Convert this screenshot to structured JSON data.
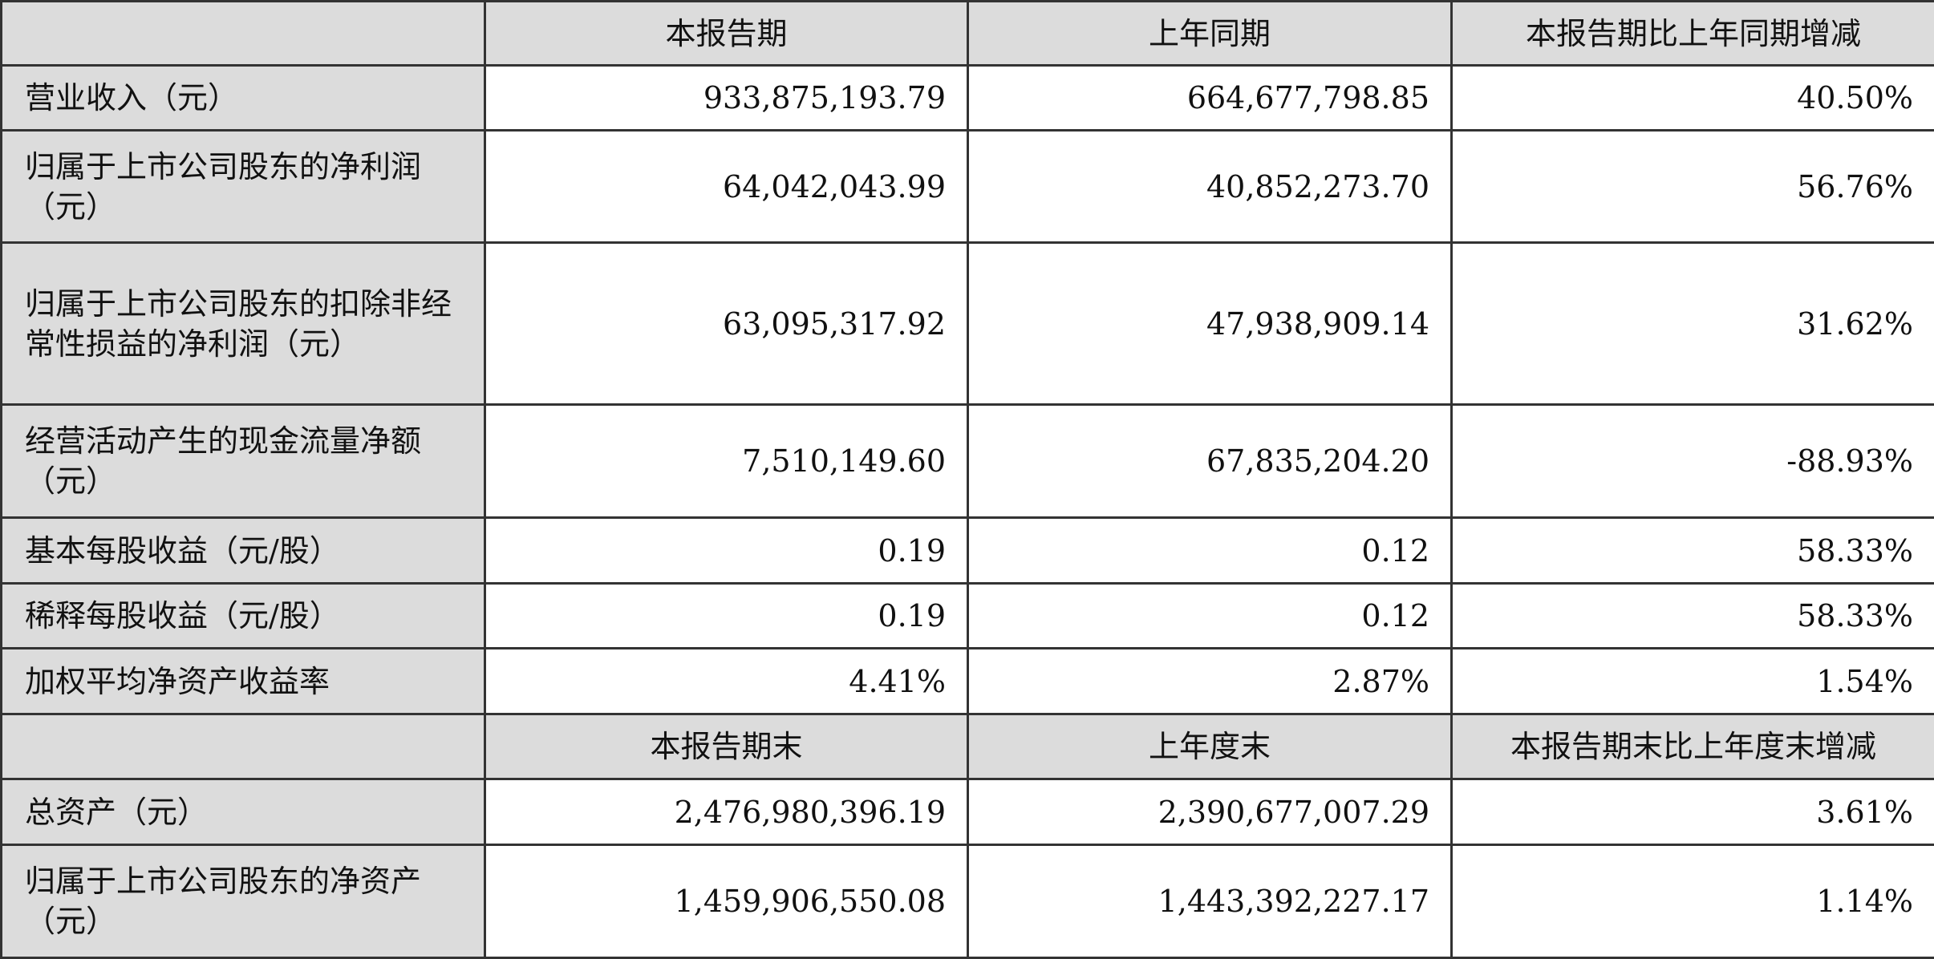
{
  "header1": [
    "",
    "本报告期",
    "上年同期",
    "本报告期比上年同期增减"
  ],
  "rows1": [
    {
      "label": "营业收入（元）",
      "current": "933,875,193.79",
      "prior": "664,677,798.85",
      "change": "40.50%"
    },
    {
      "label": "归属于上市公司股东的净利润（元）",
      "current": "64,042,043.99",
      "prior": "40,852,273.70",
      "change": "56.76%"
    },
    {
      "label": "归属于上市公司股东的扣除非经常性损益的净利润（元）",
      "current": "63,095,317.92",
      "prior": "47,938,909.14",
      "change": "31.62%"
    },
    {
      "label": "经营活动产生的现金流量净额（元）",
      "current": "7,510,149.60",
      "prior": "67,835,204.20",
      "change": "-88.93%"
    },
    {
      "label": "基本每股收益（元/股）",
      "current": "0.19",
      "prior": "0.12",
      "change": "58.33%"
    },
    {
      "label": "稀释每股收益（元/股）",
      "current": "0.19",
      "prior": "0.12",
      "change": "58.33%"
    },
    {
      "label": "加权平均净资产收益率",
      "current": "4.41%",
      "prior": "2.87%",
      "change": "1.54%"
    }
  ],
  "header2": [
    "",
    "本报告期末",
    "上年度末",
    "本报告期末比上年度末增减"
  ],
  "rows2": [
    {
      "label": "总资产（元）",
      "current": "2,476,980,396.19",
      "prior": "2,390,677,007.29",
      "change": "3.61%"
    },
    {
      "label": "归属于上市公司股东的净资产（元）",
      "current": "1,459,906,550.08",
      "prior": "1,443,392,227.17",
      "change": "1.14%"
    }
  ]
}
